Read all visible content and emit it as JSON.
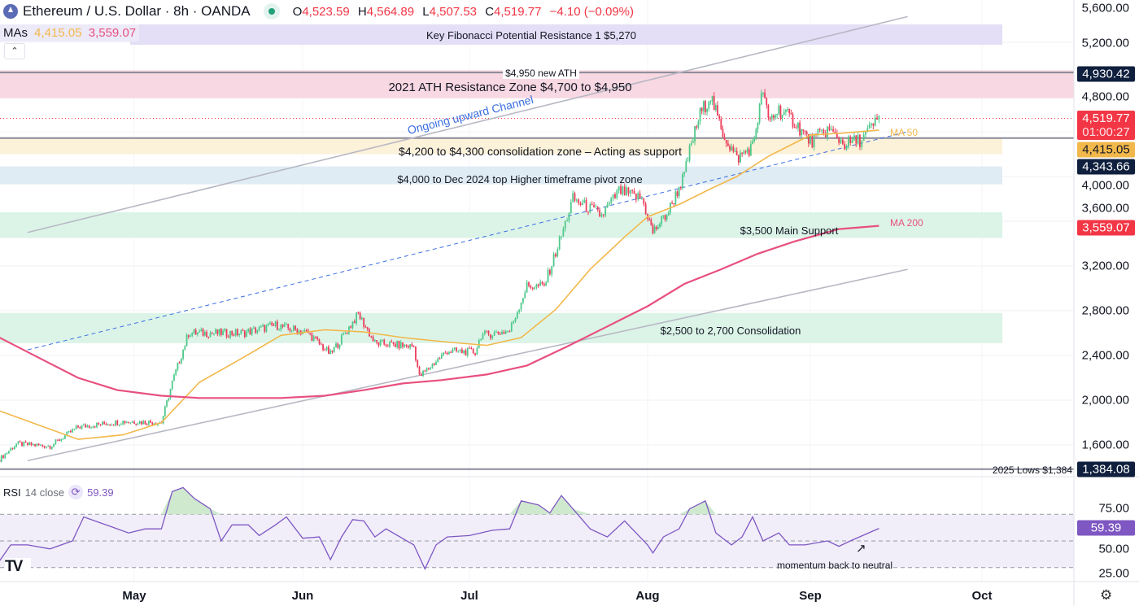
{
  "header": {
    "title": "Ethereum / U.S. Dollar · 8h · OANDA",
    "open_label": "O",
    "open": "4,523.59",
    "high_label": "H",
    "high": "4,564.89",
    "low_label": "L",
    "low": "4,507.53",
    "close_label": "C",
    "close": "4,519.77",
    "change": "−4.10 (−0.09%)",
    "status_icon": "market-open-dot"
  },
  "mas": {
    "label": "MAs",
    "ma50": "4,415.05",
    "ma200": "3,559.07"
  },
  "rsi_header": {
    "label": "RSI",
    "params": "14 close",
    "value": "59.39",
    "icon": "refresh-icon"
  },
  "colors": {
    "up": "#4fc98b",
    "down": "#ec3d5a",
    "ma50": "#f2b84b",
    "ma200": "#e8507f",
    "rsi": "#7e57c2",
    "navy": "#0f1f3d",
    "red": "#f23645",
    "channel": "#b8b8c4",
    "mid_channel": "#3b6fe0"
  },
  "price_axis": {
    "ticks": [
      "5,600.00",
      "5,200.00",
      "4,800.00",
      "4,000.00",
      "3,600.00",
      "3,200.00",
      "2,800.00",
      "2,400.00",
      "2,000.00",
      "1,600.00"
    ]
  },
  "badges": {
    "ath_line": "4,930.42",
    "last": "4,519.77",
    "countdown": "01:00:27",
    "ma50": "4,415.05",
    "support_line": "4,343.66",
    "ma200": "3,559.07",
    "lows": "1,384.08",
    "rsi": "59.39"
  },
  "rsi_axis": [
    "75.00",
    "50.00",
    "25.00"
  ],
  "time_axis": [
    "May",
    "Jun",
    "Jul",
    "Aug",
    "Sep",
    "Oct"
  ],
  "annotations": {
    "fib": "Key Fibonacci Potential Resistance 1 $5,270",
    "ath_new": "$4,950 new ATH",
    "ath_zone": "2021 ATH Resistance Zone $4,700 to $4,950",
    "channel": "Ongoing upward Channel",
    "consolidation": "$4,200 to $4,300 consolidation zone – Acting as support",
    "pivot": "$4,000 to Dec 2024 top Higher timeframe pivot zone",
    "main_support": "$3,500 Main Support",
    "consol_low": "$2,500 to 2,700 Consolidation",
    "lows": "2025 Lows $1,384",
    "ma50": "MA 50",
    "ma200": "MA 200",
    "rsi_note": "momentum back to neutral"
  },
  "chart_data": {
    "type": "candlestick",
    "symbol": "ETHUSD",
    "interval": "8h",
    "ylim": [
      1300,
      5650
    ],
    "scale": "linear",
    "grid": true,
    "close_path": [
      [
        "2025-04-07",
        1470
      ],
      [
        "2025-04-10",
        1610
      ],
      [
        "2025-04-16",
        1590
      ],
      [
        "2025-04-21",
        1760
      ],
      [
        "2025-04-29",
        1810
      ],
      [
        "2025-05-06",
        1800
      ],
      [
        "2025-05-08",
        2160
      ],
      [
        "2025-05-11",
        2600
      ],
      [
        "2025-05-13",
        2600
      ],
      [
        "2025-05-21",
        2600
      ],
      [
        "2025-05-27",
        2670
      ],
      [
        "2025-06-02",
        2600
      ],
      [
        "2025-06-06",
        2410
      ],
      [
        "2025-06-11",
        2770
      ],
      [
        "2025-06-14",
        2510
      ],
      [
        "2025-06-21",
        2480
      ],
      [
        "2025-06-22",
        2210
      ],
      [
        "2025-06-27",
        2440
      ],
      [
        "2025-07-02",
        2430
      ],
      [
        "2025-07-03",
        2580
      ],
      [
        "2025-07-08",
        2620
      ],
      [
        "2025-07-11",
        3020
      ],
      [
        "2025-07-14",
        3020
      ],
      [
        "2025-07-17",
        3470
      ],
      [
        "2025-07-19",
        3800
      ],
      [
        "2025-07-24",
        3650
      ],
      [
        "2025-07-27",
        3870
      ],
      [
        "2025-07-31",
        3800
      ],
      [
        "2025-08-02",
        3500
      ],
      [
        "2025-08-05",
        3690
      ],
      [
        "2025-08-08",
        4010
      ],
      [
        "2025-08-09",
        4230
      ],
      [
        "2025-08-11",
        4560
      ],
      [
        "2025-08-13",
        4725
      ],
      [
        "2025-08-15",
        4420
      ],
      [
        "2025-08-18",
        4160
      ],
      [
        "2025-08-21",
        4270
      ],
      [
        "2025-08-23",
        4780
      ],
      [
        "2025-08-24",
        4490
      ],
      [
        "2025-08-26",
        4600
      ],
      [
        "2025-08-29",
        4490
      ],
      [
        "2025-09-01",
        4310
      ],
      [
        "2025-09-04",
        4420
      ],
      [
        "2025-09-07",
        4290
      ],
      [
        "2025-09-10",
        4330
      ],
      [
        "2025-09-13",
        4519.77
      ]
    ],
    "ma50": [
      [
        "2025-04-07",
        1905
      ],
      [
        "2025-04-21",
        1650
      ],
      [
        "2025-04-29",
        1690
      ],
      [
        "2025-05-06",
        1800
      ],
      [
        "2025-05-13",
        2160
      ],
      [
        "2025-05-21",
        2380
      ],
      [
        "2025-05-28",
        2580
      ],
      [
        "2025-06-05",
        2630
      ],
      [
        "2025-06-12",
        2610
      ],
      [
        "2025-06-19",
        2560
      ],
      [
        "2025-06-27",
        2520
      ],
      [
        "2025-07-04",
        2490
      ],
      [
        "2025-07-10",
        2560
      ],
      [
        "2025-07-16",
        2810
      ],
      [
        "2025-07-22",
        3170
      ],
      [
        "2025-07-28",
        3460
      ],
      [
        "2025-08-01",
        3640
      ],
      [
        "2025-08-07",
        3750
      ],
      [
        "2025-08-13",
        3890
      ],
      [
        "2025-08-18",
        4000
      ],
      [
        "2025-08-24",
        4180
      ],
      [
        "2025-09-01",
        4370
      ],
      [
        "2025-09-07",
        4390
      ],
      [
        "2025-09-13",
        4415.05
      ]
    ],
    "ma200": [
      [
        "2025-04-07",
        2560
      ],
      [
        "2025-04-14",
        2380
      ],
      [
        "2025-04-21",
        2200
      ],
      [
        "2025-04-28",
        2090
      ],
      [
        "2025-05-06",
        2040
      ],
      [
        "2025-05-13",
        2020
      ],
      [
        "2025-05-21",
        2020
      ],
      [
        "2025-05-28",
        2020
      ],
      [
        "2025-06-05",
        2040
      ],
      [
        "2025-06-12",
        2090
      ],
      [
        "2025-06-19",
        2150
      ],
      [
        "2025-06-26",
        2180
      ],
      [
        "2025-07-04",
        2230
      ],
      [
        "2025-07-11",
        2310
      ],
      [
        "2025-07-18",
        2480
      ],
      [
        "2025-07-25",
        2660
      ],
      [
        "2025-08-01",
        2840
      ],
      [
        "2025-08-08",
        3040
      ],
      [
        "2025-08-15",
        3170
      ],
      [
        "2025-08-22",
        3310
      ],
      [
        "2025-08-29",
        3420
      ],
      [
        "2025-09-06",
        3530
      ],
      [
        "2025-09-13",
        3559.07
      ]
    ],
    "zones": [
      {
        "label": "fib",
        "from": 5178,
        "to": 5360
      },
      {
        "label": "",
        "from": 4840,
        "to": 4895
      },
      {
        "label": "ath_zone",
        "from": 4700,
        "to": 4950
      },
      {
        "label": "consolidation",
        "from": 4200,
        "to": 4343.66
      },
      {
        "label": "pivot",
        "from": 3930,
        "to": 4090
      },
      {
        "label": "main_support",
        "from": 3450,
        "to": 3680
      },
      {
        "label": "consol_low",
        "from": 2510,
        "to": 2780
      }
    ],
    "lines": {
      "ath": 4930.42,
      "support": 4343.66,
      "lows": 1384.08,
      "last": 4519.77
    },
    "channel": {
      "upper": [
        [
          "2025-04-12",
          3500
        ],
        [
          "2025-09-18",
          5430
        ]
      ],
      "mid": [
        [
          "2025-04-12",
          2450
        ],
        [
          "2025-09-18",
          4400
        ]
      ],
      "lower": [
        [
          "2025-04-12",
          1460
        ],
        [
          "2025-09-18",
          3170
        ]
      ]
    },
    "rsi": {
      "period": 14,
      "levels": [
        70,
        50,
        30
      ],
      "ylim": [
        15,
        95
      ],
      "values": [
        [
          "2025-04-07",
          35
        ],
        [
          "2025-04-09",
          47
        ],
        [
          "2025-04-12",
          47
        ],
        [
          "2025-04-16",
          44
        ],
        [
          "2025-04-20",
          50
        ],
        [
          "2025-04-22",
          68
        ],
        [
          "2025-04-26",
          62
        ],
        [
          "2025-04-30",
          56
        ],
        [
          "2025-05-03",
          59
        ],
        [
          "2025-05-06",
          59
        ],
        [
          "2025-05-08",
          87
        ],
        [
          "2025-05-10",
          90
        ],
        [
          "2025-05-12",
          82
        ],
        [
          "2025-05-15",
          74
        ],
        [
          "2025-05-17",
          50
        ],
        [
          "2025-05-19",
          62
        ],
        [
          "2025-05-22",
          62
        ],
        [
          "2025-05-24",
          54
        ],
        [
          "2025-05-27",
          62
        ],
        [
          "2025-05-29",
          68
        ],
        [
          "2025-06-01",
          52
        ],
        [
          "2025-06-04",
          53
        ],
        [
          "2025-06-06",
          36
        ],
        [
          "2025-06-08",
          53
        ],
        [
          "2025-06-10",
          66
        ],
        [
          "2025-06-12",
          65
        ],
        [
          "2025-06-14",
          53
        ],
        [
          "2025-06-16",
          59
        ],
        [
          "2025-06-21",
          47
        ],
        [
          "2025-06-23",
          29
        ],
        [
          "2025-06-25",
          47
        ],
        [
          "2025-06-27",
          53
        ],
        [
          "2025-07-01",
          54
        ],
        [
          "2025-07-05",
          58
        ],
        [
          "2025-07-08",
          59
        ],
        [
          "2025-07-10",
          80
        ],
        [
          "2025-07-13",
          77
        ],
        [
          "2025-07-15",
          71
        ],
        [
          "2025-07-17",
          84
        ],
        [
          "2025-07-19",
          74
        ],
        [
          "2025-07-22",
          59
        ],
        [
          "2025-07-25",
          53
        ],
        [
          "2025-07-28",
          65
        ],
        [
          "2025-07-30",
          56
        ],
        [
          "2025-08-01",
          47
        ],
        [
          "2025-08-02",
          41
        ],
        [
          "2025-08-04",
          53
        ],
        [
          "2025-08-07",
          59
        ],
        [
          "2025-08-09",
          74
        ],
        [
          "2025-08-12",
          80
        ],
        [
          "2025-08-14",
          56
        ],
        [
          "2025-08-17",
          47
        ],
        [
          "2025-08-19",
          53
        ],
        [
          "2025-08-21",
          68
        ],
        [
          "2025-08-23",
          50
        ],
        [
          "2025-08-26",
          56
        ],
        [
          "2025-08-28",
          47
        ],
        [
          "2025-08-31",
          47
        ],
        [
          "2025-09-04",
          50
        ],
        [
          "2025-09-06",
          46
        ],
        [
          "2025-09-08",
          50
        ],
        [
          "2025-09-13",
          59.39
        ]
      ]
    }
  }
}
